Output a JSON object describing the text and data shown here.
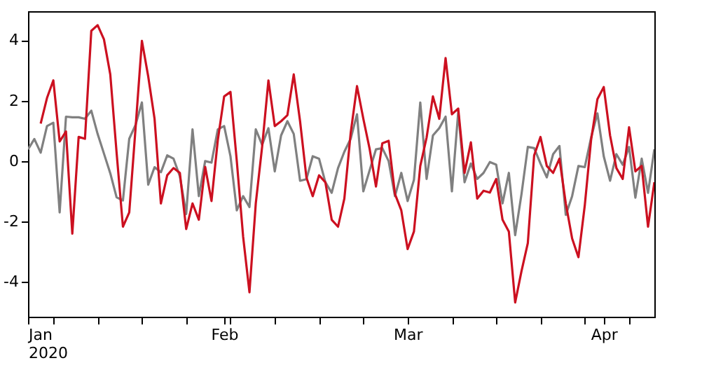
{
  "chart_data": {
    "type": "line",
    "x": [
      "2020-01-01",
      "2020-01-02",
      "2020-01-03",
      "2020-01-04",
      "2020-01-05",
      "2020-01-06",
      "2020-01-07",
      "2020-01-08",
      "2020-01-09",
      "2020-01-10",
      "2020-01-11",
      "2020-01-12",
      "2020-01-13",
      "2020-01-14",
      "2020-01-15",
      "2020-01-16",
      "2020-01-17",
      "2020-01-18",
      "2020-01-19",
      "2020-01-20",
      "2020-01-21",
      "2020-01-22",
      "2020-01-23",
      "2020-01-24",
      "2020-01-25",
      "2020-01-26",
      "2020-01-27",
      "2020-01-28",
      "2020-01-29",
      "2020-01-30",
      "2020-01-31",
      "2020-02-01",
      "2020-02-02",
      "2020-02-03",
      "2020-02-04",
      "2020-02-05",
      "2020-02-06",
      "2020-02-07",
      "2020-02-08",
      "2020-02-09",
      "2020-02-10",
      "2020-02-11",
      "2020-02-12",
      "2020-02-13",
      "2020-02-14",
      "2020-02-15",
      "2020-02-16",
      "2020-02-17",
      "2020-02-18",
      "2020-02-19",
      "2020-02-20",
      "2020-02-21",
      "2020-02-22",
      "2020-02-23",
      "2020-02-24",
      "2020-02-25",
      "2020-02-26",
      "2020-02-27",
      "2020-02-28",
      "2020-02-29",
      "2020-03-01",
      "2020-03-02",
      "2020-03-03",
      "2020-03-04",
      "2020-03-05",
      "2020-03-06",
      "2020-03-07",
      "2020-03-08",
      "2020-03-09",
      "2020-03-10",
      "2020-03-11",
      "2020-03-12",
      "2020-03-13",
      "2020-03-14",
      "2020-03-15",
      "2020-03-16",
      "2020-03-17",
      "2020-03-18",
      "2020-03-19",
      "2020-03-20",
      "2020-03-21",
      "2020-03-22",
      "2020-03-23",
      "2020-03-24",
      "2020-03-25",
      "2020-03-26",
      "2020-03-27",
      "2020-03-28",
      "2020-03-29",
      "2020-03-30",
      "2020-03-31",
      "2020-04-01",
      "2020-04-02",
      "2020-04-03",
      "2020-04-04",
      "2020-04-05",
      "2020-04-06",
      "2020-04-07",
      "2020-04-08",
      "2020-04-09"
    ],
    "series": [
      {
        "color": "#808080",
        "values": [
          0.39,
          0.73,
          0.28,
          1.16,
          1.27,
          -1.7,
          1.47,
          1.45,
          1.45,
          1.4,
          1.67,
          0.9,
          0.25,
          -0.4,
          -1.2,
          -1.3,
          0.74,
          1.2,
          1.94,
          -0.78,
          -0.2,
          -0.37,
          0.19,
          0.08,
          -0.5,
          -1.75,
          1.05,
          -1.16,
          0.0,
          -0.05,
          1.05,
          1.16,
          0.16,
          -1.63,
          -1.16,
          -1.52,
          1.05,
          0.54,
          1.09,
          -0.34,
          0.85,
          1.32,
          0.9,
          -0.65,
          -0.6,
          0.16,
          0.08,
          -0.7,
          -1.05,
          -0.23,
          0.31,
          0.74,
          1.55,
          -1.0,
          -0.3,
          0.39,
          0.43,
          0.0,
          -1.16,
          -0.39,
          -1.32,
          -0.62,
          1.94,
          -0.59,
          0.85,
          1.09,
          1.47,
          -1.0,
          1.63,
          -0.7,
          -0.08,
          -0.59,
          -0.39,
          -0.03,
          -0.12,
          -1.4,
          -0.39,
          -2.45,
          -1.09,
          0.47,
          0.43,
          -0.08,
          -0.54,
          0.23,
          0.5,
          -1.78,
          -1.16,
          -0.16,
          -0.2,
          0.78,
          1.58,
          0.16,
          -0.65,
          0.23,
          -0.12,
          0.47,
          -1.21,
          0.08,
          -1.05,
          0.39
        ]
      },
      {
        "color": "#cc1020",
        "values": [
          null,
          null,
          1.24,
          2.09,
          2.67,
          0.65,
          0.98,
          -2.4,
          0.8,
          0.74,
          4.31,
          4.5,
          4.03,
          2.87,
          0.28,
          -2.17,
          -1.7,
          1.1,
          3.98,
          2.8,
          1.4,
          -1.4,
          -0.47,
          -0.23,
          -0.39,
          -2.25,
          -1.4,
          -1.94,
          -0.19,
          -1.32,
          0.7,
          2.14,
          2.29,
          0.0,
          -2.5,
          -4.34,
          -1.4,
          0.47,
          2.67,
          1.16,
          1.32,
          1.52,
          2.87,
          1.32,
          -0.54,
          -1.16,
          -0.47,
          -0.7,
          -1.94,
          -2.17,
          -1.24,
          0.93,
          2.48,
          1.4,
          0.4,
          -0.84,
          0.59,
          0.67,
          -1.09,
          -1.63,
          -2.91,
          -2.33,
          -0.16,
          0.78,
          2.14,
          1.4,
          3.41,
          1.55,
          1.74,
          -0.39,
          0.62,
          -1.24,
          -0.98,
          -1.04,
          -0.59,
          -1.94,
          -2.33,
          -4.68,
          -3.64,
          -2.71,
          0.19,
          0.8,
          -0.16,
          -0.39,
          0.08,
          -1.4,
          -2.56,
          -3.18,
          -1.47,
          0.7,
          2.05,
          2.45,
          0.85,
          -0.23,
          -0.59,
          1.12,
          -0.34,
          -0.16,
          -2.17,
          -0.7
        ]
      }
    ],
    "xlim": [
      "2020-01-01",
      "2020-04-09"
    ],
    "xticks": [
      {
        "value": "2020-01-01",
        "label": "Jan\n2020"
      },
      {
        "value": "2020-01-05",
        "label": null
      },
      {
        "value": "2020-01-12",
        "label": null
      },
      {
        "value": "2020-01-19",
        "label": null
      },
      {
        "value": "2020-01-26",
        "label": null
      },
      {
        "value": "2020-02-01",
        "label": "Feb"
      },
      {
        "value": "2020-02-02",
        "label": null
      },
      {
        "value": "2020-02-09",
        "label": null
      },
      {
        "value": "2020-02-16",
        "label": null
      },
      {
        "value": "2020-02-23",
        "label": null
      },
      {
        "value": "2020-03-01",
        "label": "Mar"
      },
      {
        "value": "2020-03-08",
        "label": null
      },
      {
        "value": "2020-03-15",
        "label": null
      },
      {
        "value": "2020-03-22",
        "label": null
      },
      {
        "value": "2020-03-29",
        "label": null
      },
      {
        "value": "2020-04-01",
        "label": "Apr"
      },
      {
        "value": "2020-04-05",
        "label": null
      }
    ],
    "ylim": [
      -5.15,
      4.96
    ],
    "yticks": [
      -4,
      -2,
      0,
      2,
      4
    ],
    "grid": false,
    "legend": false,
    "marker": "none",
    "line_style": "solid"
  }
}
